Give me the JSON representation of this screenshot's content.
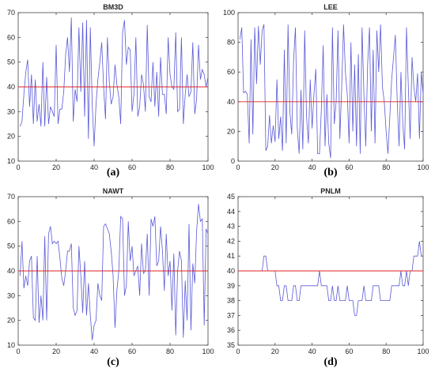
{
  "chart_data": [
    {
      "type": "line",
      "title": "BM3D",
      "panel_label": "(a)",
      "xlim": [
        0,
        100
      ],
      "ylim": [
        10,
        70
      ],
      "x_ticks": [
        0,
        20,
        40,
        60,
        80,
        100
      ],
      "y_ticks": [
        10,
        20,
        30,
        40,
        50,
        60,
        70
      ],
      "grid": false,
      "series": [
        {
          "color": "#5a5ad8",
          "x": [
            1,
            2,
            3,
            4,
            5,
            6,
            7,
            8,
            9,
            10,
            11,
            12,
            13,
            14,
            15,
            16,
            17,
            18,
            19,
            20,
            21,
            22,
            23,
            24,
            25,
            26,
            27,
            28,
            29,
            30,
            31,
            32,
            33,
            34,
            35,
            36,
            37,
            38,
            39,
            40,
            41,
            42,
            43,
            44,
            45,
            46,
            47,
            48,
            49,
            50,
            51,
            52,
            53,
            54,
            55,
            56,
            57,
            58,
            59,
            60,
            61,
            62,
            63,
            64,
            65,
            66,
            67,
            68,
            69,
            70,
            71,
            72,
            73,
            74,
            75,
            76,
            77,
            78,
            79,
            80,
            81,
            82,
            83,
            84,
            85,
            86,
            87,
            88,
            89,
            90,
            91,
            92,
            93,
            94,
            95,
            96,
            97,
            98,
            99,
            100
          ],
          "values": [
            24,
            26,
            37,
            46,
            51,
            32,
            45,
            25,
            43,
            26,
            33,
            24,
            50,
            24,
            44,
            25,
            32,
            30,
            28,
            57,
            25,
            31,
            31,
            38,
            53,
            60,
            46,
            68,
            26,
            39,
            34,
            64,
            38,
            66,
            28,
            67,
            19,
            64,
            33,
            16,
            33,
            43,
            50,
            58,
            40,
            27,
            60,
            42,
            33,
            36,
            49,
            41,
            36,
            25,
            62,
            67,
            49,
            56,
            55,
            30,
            37,
            60,
            28,
            32,
            45,
            41,
            30,
            65,
            36,
            34,
            50,
            32,
            46,
            28,
            52,
            37,
            37,
            29,
            60,
            45,
            40,
            39,
            62,
            30,
            31,
            60,
            25,
            37,
            45,
            36,
            38,
            58,
            29,
            35,
            57,
            43,
            47,
            45,
            40,
            44
          ]
        },
        {
          "color": "#e02020",
          "x": [
            0,
            100
          ],
          "values": [
            40,
            40
          ]
        }
      ]
    },
    {
      "type": "line",
      "title": "LEE",
      "panel_label": "(b)",
      "xlim": [
        0,
        100
      ],
      "ylim": [
        0,
        100
      ],
      "x_ticks": [
        0,
        20,
        40,
        60,
        80,
        100
      ],
      "y_ticks": [
        0,
        20,
        40,
        60,
        80,
        100
      ],
      "grid": false,
      "series": [
        {
          "color": "#5a5ad8",
          "x": [
            1,
            2,
            3,
            4,
            5,
            6,
            7,
            8,
            9,
            10,
            11,
            12,
            13,
            14,
            15,
            16,
            17,
            18,
            19,
            20,
            21,
            22,
            23,
            24,
            25,
            26,
            27,
            28,
            29,
            30,
            31,
            32,
            33,
            34,
            35,
            36,
            37,
            38,
            39,
            40,
            41,
            42,
            43,
            44,
            45,
            46,
            47,
            48,
            49,
            50,
            51,
            52,
            53,
            54,
            55,
            56,
            57,
            58,
            59,
            60,
            61,
            62,
            63,
            64,
            65,
            66,
            67,
            68,
            69,
            70,
            71,
            72,
            73,
            74,
            75,
            76,
            77,
            78,
            79,
            80,
            81,
            82,
            83,
            84,
            85,
            86,
            87,
            88,
            89,
            90,
            91,
            92,
            93,
            94,
            95,
            96,
            97,
            98,
            99,
            100
          ],
          "values": [
            82,
            90,
            46,
            47,
            45,
            12,
            82,
            18,
            90,
            52,
            91,
            65,
            88,
            92,
            7,
            10,
            31,
            12,
            24,
            13,
            55,
            15,
            30,
            7,
            75,
            12,
            92,
            33,
            18,
            68,
            90,
            22,
            5,
            48,
            8,
            88,
            30,
            12,
            55,
            22,
            45,
            62,
            5,
            5,
            35,
            78,
            10,
            45,
            12,
            2,
            90,
            25,
            40,
            88,
            15,
            50,
            92,
            60,
            45,
            12,
            80,
            20,
            65,
            10,
            72,
            5,
            90,
            45,
            10,
            65,
            90,
            20,
            75,
            12,
            88,
            60,
            92,
            50,
            40,
            20,
            5,
            30,
            55,
            70,
            85,
            40,
            10,
            60,
            25,
            8,
            90,
            50,
            15,
            70,
            50,
            40,
            59,
            15,
            60,
            45
          ]
        },
        {
          "color": "#e02020",
          "x": [
            0,
            100
          ],
          "values": [
            40,
            40
          ]
        }
      ]
    },
    {
      "type": "line",
      "title": "NAWT",
      "panel_label": "(c)",
      "xlim": [
        0,
        100
      ],
      "ylim": [
        10,
        70
      ],
      "x_ticks": [
        0,
        20,
        40,
        60,
        80,
        100
      ],
      "y_ticks": [
        10,
        20,
        30,
        40,
        50,
        60,
        70
      ],
      "grid": false,
      "series": [
        {
          "color": "#5a5ad8",
          "x": [
            1,
            2,
            3,
            4,
            5,
            6,
            7,
            8,
            9,
            10,
            11,
            12,
            13,
            14,
            15,
            16,
            17,
            18,
            19,
            20,
            21,
            22,
            23,
            24,
            25,
            26,
            27,
            28,
            29,
            30,
            31,
            32,
            33,
            34,
            35,
            36,
            37,
            38,
            39,
            40,
            41,
            42,
            43,
            44,
            45,
            46,
            47,
            48,
            49,
            50,
            51,
            52,
            53,
            54,
            55,
            56,
            57,
            58,
            59,
            60,
            61,
            62,
            63,
            64,
            65,
            66,
            67,
            68,
            69,
            70,
            71,
            72,
            73,
            74,
            75,
            76,
            77,
            78,
            79,
            80,
            81,
            82,
            83,
            84,
            85,
            86,
            87,
            88,
            89,
            90,
            91,
            92,
            93,
            94,
            95,
            96,
            97,
            98,
            99,
            100
          ],
          "values": [
            38,
            52,
            33,
            38,
            34,
            44,
            46,
            21,
            20,
            46,
            19,
            30,
            20,
            54,
            20,
            55,
            58,
            51,
            52,
            51,
            52,
            45,
            37,
            34,
            40,
            48,
            48,
            51,
            25,
            22,
            24,
            50,
            38,
            23,
            44,
            22,
            35,
            22,
            12,
            18,
            20,
            35,
            30,
            28,
            58,
            59,
            57,
            55,
            48,
            38,
            17,
            32,
            40,
            62,
            61,
            30,
            34,
            60,
            44,
            50,
            38,
            40,
            42,
            30,
            51,
            39,
            40,
            55,
            30,
            61,
            58,
            62,
            42,
            44,
            58,
            48,
            32,
            55,
            38,
            44,
            24,
            47,
            14,
            40,
            48,
            44,
            13,
            36,
            20,
            59,
            16,
            43,
            35,
            56,
            67,
            60,
            61,
            18,
            57,
            55
          ]
        },
        {
          "color": "#e02020",
          "x": [
            0,
            100
          ],
          "values": [
            40,
            40
          ]
        }
      ]
    },
    {
      "type": "line",
      "title": "PNLM",
      "panel_label": "(d)",
      "xlim": [
        0,
        100
      ],
      "ylim": [
        35,
        45
      ],
      "x_ticks": [
        0,
        20,
        40,
        60,
        80,
        100
      ],
      "y_ticks": [
        35,
        36,
        37,
        38,
        39,
        40,
        41,
        42,
        43,
        44,
        45
      ],
      "grid": false,
      "series": [
        {
          "color": "#5a5ad8",
          "x": [
            1,
            2,
            3,
            4,
            5,
            6,
            7,
            8,
            9,
            10,
            11,
            12,
            13,
            14,
            15,
            16,
            17,
            18,
            19,
            20,
            21,
            22,
            23,
            24,
            25,
            26,
            27,
            28,
            29,
            30,
            31,
            32,
            33,
            34,
            35,
            36,
            37,
            38,
            39,
            40,
            41,
            42,
            43,
            44,
            45,
            46,
            47,
            48,
            49,
            50,
            51,
            52,
            53,
            54,
            55,
            56,
            57,
            58,
            59,
            60,
            61,
            62,
            63,
            64,
            65,
            66,
            67,
            68,
            69,
            70,
            71,
            72,
            73,
            74,
            75,
            76,
            77,
            78,
            79,
            80,
            81,
            82,
            83,
            84,
            85,
            86,
            87,
            88,
            89,
            90,
            91,
            92,
            93,
            94,
            95,
            96,
            97,
            98,
            99,
            100
          ],
          "values": [
            40,
            40,
            40,
            40,
            40,
            40,
            40,
            40,
            40,
            40,
            40,
            40,
            40,
            41,
            41,
            40,
            40,
            40,
            40,
            40,
            39,
            39,
            38,
            38,
            39,
            39,
            38,
            38,
            38,
            39,
            39,
            38,
            38,
            39,
            39,
            39,
            39,
            39,
            39,
            39,
            39,
            39,
            39,
            40,
            39,
            39,
            39,
            39,
            38,
            38,
            39,
            38,
            38,
            39,
            38,
            38,
            38,
            38,
            39,
            38,
            38,
            38,
            37,
            37,
            38,
            38,
            38,
            39,
            38,
            38,
            38,
            38,
            39,
            39,
            39,
            39,
            38,
            38,
            38,
            38,
            38,
            38,
            39,
            39,
            39,
            39,
            39,
            40,
            39,
            39,
            40,
            39,
            40,
            40,
            41,
            41,
            41,
            42,
            41,
            41
          ]
        },
        {
          "color": "#e02020",
          "x": [
            0,
            100
          ],
          "values": [
            40,
            40
          ]
        }
      ]
    }
  ]
}
